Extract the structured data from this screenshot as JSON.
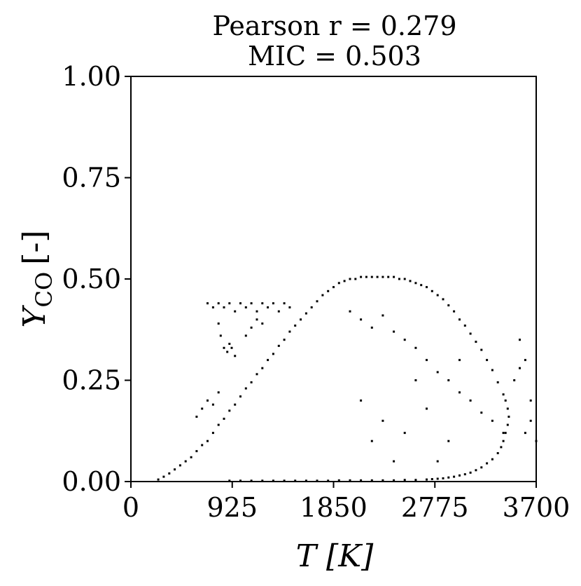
{
  "chart_data": {
    "type": "scatter",
    "title_lines": [
      "Pearson r = 0.279",
      "MIC = 0.503"
    ],
    "xlabel": "T [K]",
    "ylabel": "Y",
    "ylabel_sub": "CO",
    "ylabel_unit": "[-]",
    "xlim": [
      0,
      3700
    ],
    "ylim": [
      0,
      1.0
    ],
    "xticks": [
      0,
      925,
      1850,
      2775,
      3700
    ],
    "xtick_labels": [
      "0",
      "925",
      "1850",
      "2775",
      "3700"
    ],
    "yticks": [
      0,
      0.25,
      0.5,
      0.75,
      1.0
    ],
    "ytick_labels": [
      "0.00",
      "0.25",
      "0.50",
      "0.75",
      "1.00"
    ],
    "grid": false,
    "marker_color": "#000000",
    "series": [
      {
        "points": [
          [
            250,
            0.005
          ],
          [
            300,
            0.012
          ],
          [
            350,
            0.02
          ],
          [
            400,
            0.03
          ],
          [
            450,
            0.04
          ],
          [
            500,
            0.05
          ],
          [
            550,
            0.06
          ],
          [
            600,
            0.075
          ],
          [
            650,
            0.09
          ],
          [
            700,
            0.1
          ],
          [
            750,
            0.12
          ],
          [
            800,
            0.14
          ],
          [
            850,
            0.155
          ],
          [
            900,
            0.175
          ],
          [
            950,
            0.19
          ],
          [
            1000,
            0.21
          ],
          [
            1050,
            0.23
          ],
          [
            1100,
            0.245
          ],
          [
            1150,
            0.265
          ],
          [
            1200,
            0.28
          ],
          [
            1250,
            0.3
          ],
          [
            1300,
            0.315
          ],
          [
            1350,
            0.335
          ],
          [
            1400,
            0.35
          ],
          [
            1450,
            0.37
          ],
          [
            1500,
            0.385
          ],
          [
            1550,
            0.4
          ],
          [
            1600,
            0.415
          ],
          [
            1650,
            0.43
          ],
          [
            1700,
            0.445
          ],
          [
            1750,
            0.46
          ],
          [
            1800,
            0.47
          ],
          [
            1850,
            0.48
          ],
          [
            1900,
            0.49
          ],
          [
            1950,
            0.495
          ],
          [
            2000,
            0.5
          ],
          [
            2050,
            0.5
          ],
          [
            2100,
            0.505
          ],
          [
            2150,
            0.505
          ],
          [
            2200,
            0.505
          ],
          [
            2250,
            0.505
          ],
          [
            2300,
            0.505
          ],
          [
            2350,
            0.505
          ],
          [
            2400,
            0.505
          ],
          [
            2450,
            0.5
          ],
          [
            2500,
            0.5
          ],
          [
            2550,
            0.495
          ],
          [
            2600,
            0.49
          ],
          [
            2650,
            0.485
          ],
          [
            2700,
            0.48
          ],
          [
            2750,
            0.47
          ],
          [
            2800,
            0.46
          ],
          [
            2850,
            0.45
          ],
          [
            2900,
            0.435
          ],
          [
            2950,
            0.42
          ],
          [
            3000,
            0.4
          ],
          [
            3050,
            0.385
          ],
          [
            3100,
            0.365
          ],
          [
            3150,
            0.345
          ],
          [
            3200,
            0.325
          ],
          [
            3250,
            0.3
          ],
          [
            3300,
            0.275
          ],
          [
            3350,
            0.245
          ],
          [
            3400,
            0.215
          ],
          [
            3420,
            0.2
          ],
          [
            3440,
            0.18
          ],
          [
            3450,
            0.16
          ],
          [
            3440,
            0.14
          ],
          [
            3420,
            0.12
          ],
          [
            3400,
            0.1
          ],
          [
            3380,
            0.085
          ],
          [
            3350,
            0.07
          ],
          [
            3300,
            0.055
          ],
          [
            3250,
            0.045
          ],
          [
            3200,
            0.035
          ],
          [
            3150,
            0.028
          ],
          [
            3100,
            0.022
          ],
          [
            3050,
            0.018
          ],
          [
            3000,
            0.015
          ],
          [
            2950,
            0.012
          ],
          [
            2900,
            0.01
          ],
          [
            2850,
            0.008
          ],
          [
            2800,
            0.007
          ],
          [
            2750,
            0.006
          ],
          [
            2700,
            0.005
          ],
          [
            2600,
            0.004
          ],
          [
            2500,
            0.004
          ],
          [
            2400,
            0.003
          ],
          [
            2300,
            0.003
          ],
          [
            2200,
            0.003
          ],
          [
            2100,
            0.003
          ],
          [
            2000,
            0.003
          ],
          [
            1900,
            0.003
          ],
          [
            1800,
            0.002
          ],
          [
            1700,
            0.002
          ],
          [
            1600,
            0.002
          ],
          [
            1500,
            0.002
          ],
          [
            1400,
            0.002
          ],
          [
            1300,
            0.002
          ],
          [
            1200,
            0.002
          ],
          [
            1100,
            0.002
          ],
          [
            1000,
            0.002
          ],
          [
            900,
            0.002
          ],
          [
            700,
            0.44
          ],
          [
            750,
            0.43
          ],
          [
            800,
            0.44
          ],
          [
            850,
            0.43
          ],
          [
            900,
            0.44
          ],
          [
            950,
            0.42
          ],
          [
            1000,
            0.44
          ],
          [
            1050,
            0.43
          ],
          [
            1100,
            0.44
          ],
          [
            1150,
            0.42
          ],
          [
            1200,
            0.44
          ],
          [
            1250,
            0.43
          ],
          [
            1300,
            0.44
          ],
          [
            1350,
            0.42
          ],
          [
            1400,
            0.44
          ],
          [
            1450,
            0.43
          ],
          [
            800,
            0.39
          ],
          [
            820,
            0.36
          ],
          [
            850,
            0.33
          ],
          [
            880,
            0.32
          ],
          [
            900,
            0.34
          ],
          [
            920,
            0.33
          ],
          [
            950,
            0.31
          ],
          [
            1050,
            0.36
          ],
          [
            1100,
            0.38
          ],
          [
            1150,
            0.4
          ],
          [
            1200,
            0.39
          ],
          [
            600,
            0.16
          ],
          [
            650,
            0.18
          ],
          [
            700,
            0.2
          ],
          [
            750,
            0.19
          ],
          [
            800,
            0.22
          ],
          [
            2000,
            0.42
          ],
          [
            2100,
            0.4
          ],
          [
            2200,
            0.38
          ],
          [
            2300,
            0.41
          ],
          [
            2400,
            0.37
          ],
          [
            2500,
            0.35
          ],
          [
            2600,
            0.33
          ],
          [
            2700,
            0.3
          ],
          [
            2800,
            0.27
          ],
          [
            2900,
            0.25
          ],
          [
            3000,
            0.22
          ],
          [
            3100,
            0.2
          ],
          [
            3200,
            0.17
          ],
          [
            3300,
            0.15
          ],
          [
            3400,
            0.12
          ],
          [
            2100,
            0.2
          ],
          [
            2200,
            0.1
          ],
          [
            2300,
            0.15
          ],
          [
            2400,
            0.05
          ],
          [
            2500,
            0.12
          ],
          [
            2600,
            0.25
          ],
          [
            2700,
            0.18
          ],
          [
            2800,
            0.05
          ],
          [
            2900,
            0.1
          ],
          [
            3000,
            0.3
          ],
          [
            3500,
            0.25
          ],
          [
            3550,
            0.28
          ],
          [
            3600,
            0.3
          ],
          [
            3650,
            0.15
          ],
          [
            3700,
            0.1
          ],
          [
            3550,
            0.35
          ],
          [
            3600,
            0.12
          ],
          [
            3650,
            0.2
          ]
        ]
      }
    ]
  }
}
